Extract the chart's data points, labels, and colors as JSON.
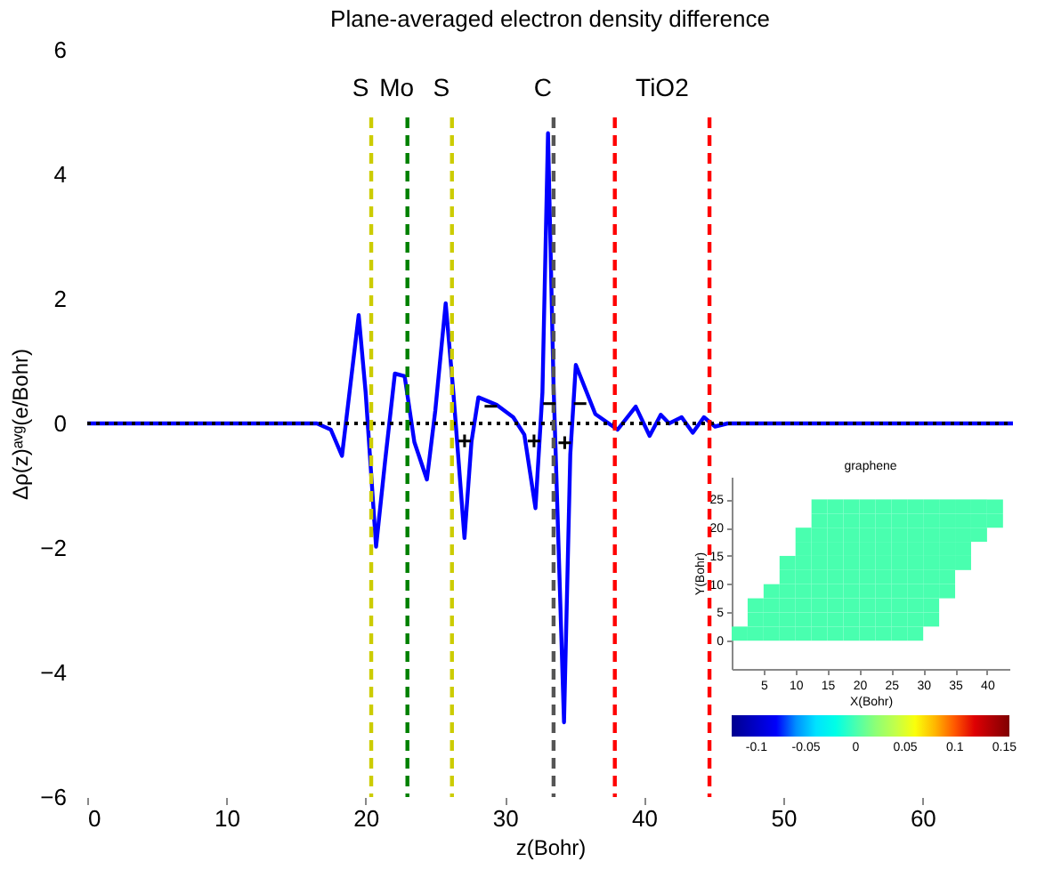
{
  "chart_data": [
    {
      "type": "line",
      "title": "Plane-averaged electron density difference",
      "xlabel": "z(Bohr)",
      "ylabel": "Δρ(z)ᵃᵛᵍ(e/Bohr)",
      "x": [
        0,
        16.5,
        17.5,
        18.3,
        19.5,
        20.0,
        20.75,
        21.4,
        22.1,
        22.8,
        23.5,
        24.4,
        25.0,
        25.75,
        26.3,
        27.1,
        27.6,
        28.1,
        29.4,
        30.6,
        31.4,
        32.2,
        32.7,
        33.1,
        33.5,
        34.25,
        34.7,
        35.1,
        36.5,
        38.1,
        39.4,
        40.4,
        41.2,
        41.8,
        42.7,
        43.5,
        44.3,
        45.1,
        46,
        66.5
      ],
      "series": [
        {
          "color": "#0000ff",
          "values": [
            0,
            0,
            -0.1,
            -0.52,
            1.74,
            0.5,
            -1.98,
            -0.6,
            0.8,
            0.76,
            -0.3,
            -0.9,
            0.2,
            1.93,
            0.5,
            -1.84,
            -0.3,
            0.42,
            0.3,
            0.1,
            -0.18,
            -1.36,
            0.5,
            4.66,
            0.6,
            -4.8,
            -0.5,
            0.94,
            0.15,
            -0.1,
            0.27,
            -0.2,
            0.14,
            0,
            0.1,
            -0.15,
            0.1,
            -0.05,
            0,
            0
          ]
        }
      ],
      "xlim": [
        0,
        66.5
      ],
      "ylim": [
        -6,
        6
      ],
      "xticks": [
        0,
        10,
        20,
        30,
        40,
        50,
        60
      ],
      "yticks": [
        -6,
        -4,
        -2,
        0,
        2,
        4,
        6
      ],
      "ref_lines": [
        {
          "axis": "y",
          "value": 0,
          "color": "#000000",
          "line_style": "dotted"
        },
        {
          "axis": "x",
          "value": 20.4,
          "label": "S",
          "color": "#cccc00",
          "line_style": "dashed"
        },
        {
          "axis": "x",
          "value": 23.0,
          "label": "Mo",
          "color": "#008000",
          "line_style": "dashed"
        },
        {
          "axis": "x",
          "value": 26.2,
          "label": "S",
          "color": "#cccc00",
          "line_style": "dashed"
        },
        {
          "axis": "x",
          "value": 33.5,
          "label": "C",
          "color": "#555555",
          "line_style": "dashed"
        },
        {
          "axis": "x",
          "value": 37.9,
          "color": "#ff0000",
          "line_style": "dashed"
        },
        {
          "axis": "x",
          "value": 44.7,
          "color": "#ff0000",
          "line_style": "dashed"
        }
      ],
      "annotations": [
        "TiO2",
        {
          "text": "+",
          "x": 27.1,
          "y": -0.3
        },
        {
          "text": "−",
          "x": 29.0,
          "y": 0.26
        },
        {
          "text": "+",
          "x": 32.1,
          "y": -0.3
        },
        {
          "text": "−",
          "x": 33.2,
          "y": 0.3
        },
        {
          "text": "+",
          "x": 34.3,
          "y": -0.33
        },
        {
          "text": "−",
          "x": 35.4,
          "y": 0.3
        }
      ],
      "grid": false
    },
    {
      "type": "heatmap",
      "title": "graphene",
      "xlabel": "X(Bohr)",
      "ylabel": "Y(Bohr)",
      "x": [
        1.25,
        3.75,
        6.25,
        8.75,
        11.25,
        13.75,
        16.25,
        18.75,
        21.25,
        23.75,
        26.25,
        28.75,
        31.25,
        33.75,
        36.25,
        38.75,
        41.25
      ],
      "y": [
        23.75,
        21.25,
        18.75,
        16.25,
        13.75,
        11.25,
        8.75,
        6.25,
        3.75,
        1.25
      ],
      "cells": [
        [
          null,
          null,
          null,
          null,
          null,
          0,
          0,
          0,
          0,
          0,
          0,
          0,
          0,
          0,
          0,
          0,
          0
        ],
        [
          null,
          null,
          null,
          null,
          null,
          0,
          0,
          0,
          0,
          0,
          0,
          0,
          0,
          0,
          0,
          0,
          0
        ],
        [
          null,
          null,
          null,
          null,
          0,
          0,
          0,
          0,
          0,
          0,
          0,
          0,
          0,
          0,
          0,
          0,
          null
        ],
        [
          null,
          null,
          null,
          null,
          0,
          0,
          0,
          0,
          0,
          0,
          0,
          0,
          0,
          0,
          0,
          null,
          null
        ],
        [
          null,
          null,
          null,
          0,
          0,
          0,
          0,
          0,
          0,
          0,
          0,
          0,
          0,
          0,
          0,
          null,
          null
        ],
        [
          null,
          null,
          null,
          0,
          0,
          0,
          0,
          0,
          0,
          0,
          0,
          0,
          0,
          0,
          null,
          null,
          null
        ],
        [
          null,
          null,
          0,
          0,
          0,
          0,
          0,
          0,
          0,
          0,
          0,
          0,
          0,
          0,
          null,
          null,
          null
        ],
        [
          null,
          0,
          0,
          0,
          0,
          0,
          0,
          0,
          0,
          0,
          0,
          0,
          0,
          null,
          null,
          null,
          null
        ],
        [
          null,
          0,
          0,
          0,
          0,
          0,
          0,
          0,
          0,
          0,
          0,
          0,
          0,
          null,
          null,
          null,
          null
        ],
        [
          0,
          0,
          0,
          0,
          0,
          0,
          0,
          0,
          0,
          0,
          0,
          0,
          null,
          null,
          null,
          null,
          null
        ]
      ],
      "xlim": [
        0,
        43.5
      ],
      "xticks": [
        5,
        10,
        15,
        20,
        25,
        30,
        35,
        40
      ],
      "ylim": [
        -5,
        29
      ],
      "yticks": [
        0,
        5,
        10,
        15,
        20,
        25
      ],
      "clim": [
        -0.125,
        0.155
      ],
      "cticks": [
        -0.1,
        -0.05,
        0,
        0.05,
        0.1,
        0.15
      ],
      "colors": [
        "#00008f",
        "#0000ff",
        "#00ffff",
        "#80ff80",
        "#ffff00",
        "#ff0000",
        "#800000"
      ]
    }
  ]
}
